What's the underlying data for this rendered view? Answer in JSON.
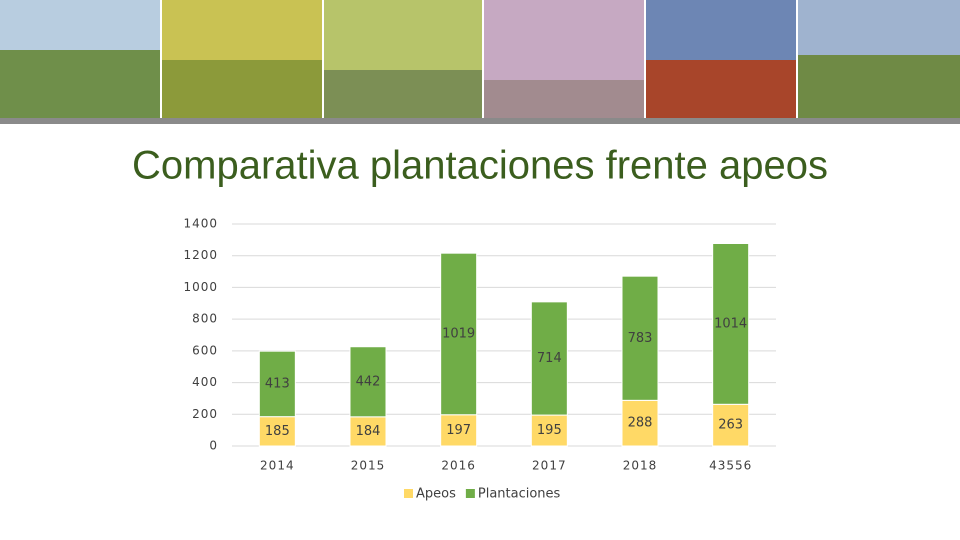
{
  "chart_data": {
    "type": "bar",
    "stacked": true,
    "title": "Comparativa plantaciones frente apeos",
    "categories": [
      "2014",
      "2015",
      "2016",
      "2017",
      "2018",
      "43556"
    ],
    "series": [
      {
        "name": "Apeos",
        "color": "#ffd966",
        "values": [
          185,
          184,
          197,
          195,
          288,
          263
        ]
      },
      {
        "name": "Plantaciones",
        "color": "#70ad47",
        "values": [
          413,
          442,
          1019,
          714,
          783,
          1014
        ]
      }
    ],
    "ylim": [
      0,
      1400
    ],
    "yticks": [
      0,
      200,
      400,
      600,
      800,
      1000,
      1200,
      1400
    ],
    "grid": true,
    "legend": "bottom"
  }
}
